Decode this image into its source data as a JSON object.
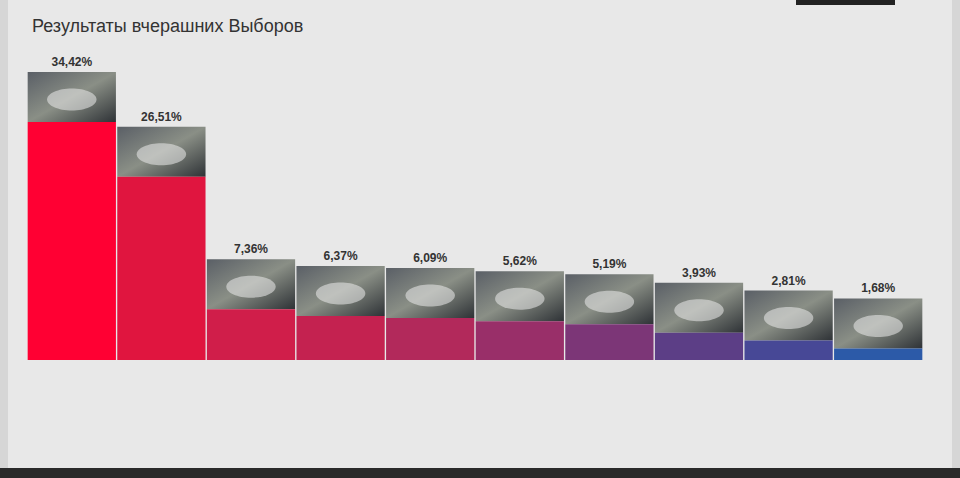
{
  "chart_data": {
    "type": "bar",
    "title": "Результаты вчерашних Выборов",
    "categories": [
      null,
      null,
      null,
      null,
      null,
      null,
      null,
      null,
      null,
      null
    ],
    "values": [
      34.42,
      26.51,
      7.36,
      6.37,
      6.09,
      5.62,
      5.19,
      3.93,
      2.81,
      1.68
    ],
    "value_labels": [
      "34,42%",
      "26,51%",
      "7,36%",
      "6,37%",
      "6,09%",
      "5,62%",
      "5,19%",
      "3,93%",
      "2,81%",
      "1,68%"
    ],
    "colors": [
      "#ff0033",
      "#e0153f",
      "#d01e4a",
      "#c42250",
      "#b2295b",
      "#992f69",
      "#7c3677",
      "#5c3e86",
      "#474896",
      "#2c5aa8"
    ],
    "ylim": [
      0,
      45
    ],
    "data_labels": true,
    "tick_labels": false,
    "grid": false
  }
}
